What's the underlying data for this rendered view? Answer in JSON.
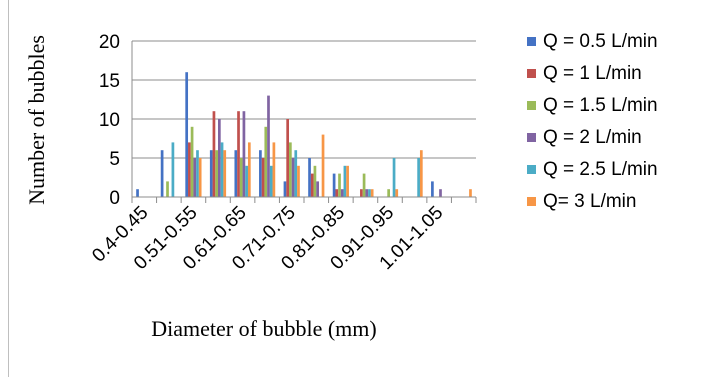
{
  "chart_data": {
    "type": "bar",
    "title": "",
    "xlabel": "Diameter of bubble (mm)",
    "ylabel": "Number of bubbles",
    "ylim": [
      0,
      20
    ],
    "yticks": [
      "0",
      "5",
      "10",
      "15",
      "20"
    ],
    "grid": true,
    "legend_position": "right",
    "categories": [
      "0.4-0.45",
      "0.46-0.50",
      "0.51-0.55",
      "0.56-0.60",
      "0.61-0.65",
      "0.66-0.70",
      "0.71-0.75",
      "0.76-0.80",
      "0.81-0.85",
      "0.86-0.90",
      "0.91-0.95",
      "0.96-1.00",
      "1.01-1.05",
      "1.06-1.10"
    ],
    "visible_category_labels": [
      "0.4-0.45",
      "0.51-0.55",
      "0.61-0.65",
      "0.71-0.75",
      "0.81-0.85",
      "0.91-0.95",
      "1.01-1.05"
    ],
    "series": [
      {
        "name": "Q = 0.5 L/min",
        "color": "#4472C4",
        "values": [
          1,
          6,
          16,
          6,
          6,
          6,
          2,
          5,
          3,
          0,
          0,
          0,
          2,
          0
        ]
      },
      {
        "name": "Q = 1 L/min",
        "color": "#C0504D",
        "values": [
          0,
          0,
          7,
          11,
          11,
          5,
          10,
          3,
          1,
          1,
          0,
          0,
          0,
          0
        ]
      },
      {
        "name": "Q = 1.5 L/min",
        "color": "#9BBB59",
        "values": [
          0,
          2,
          9,
          6,
          5,
          9,
          7,
          4,
          3,
          3,
          1,
          0,
          0,
          0
        ]
      },
      {
        "name": "Q = 2 L/min",
        "color": "#8064A2",
        "values": [
          0,
          0,
          5,
          10,
          11,
          13,
          5,
          2,
          1,
          1,
          0,
          0,
          1,
          0
        ]
      },
      {
        "name": "Q = 2.5 L/min",
        "color": "#4BACC6",
        "values": [
          0,
          7,
          6,
          7,
          4,
          4,
          6,
          0,
          4,
          1,
          5,
          5,
          0,
          0
        ]
      },
      {
        "name": "Q= 3 L/min",
        "color": "#F79646",
        "values": [
          0,
          0,
          5,
          6,
          7,
          7,
          4,
          8,
          4,
          1,
          1,
          6,
          0,
          1
        ]
      }
    ]
  }
}
